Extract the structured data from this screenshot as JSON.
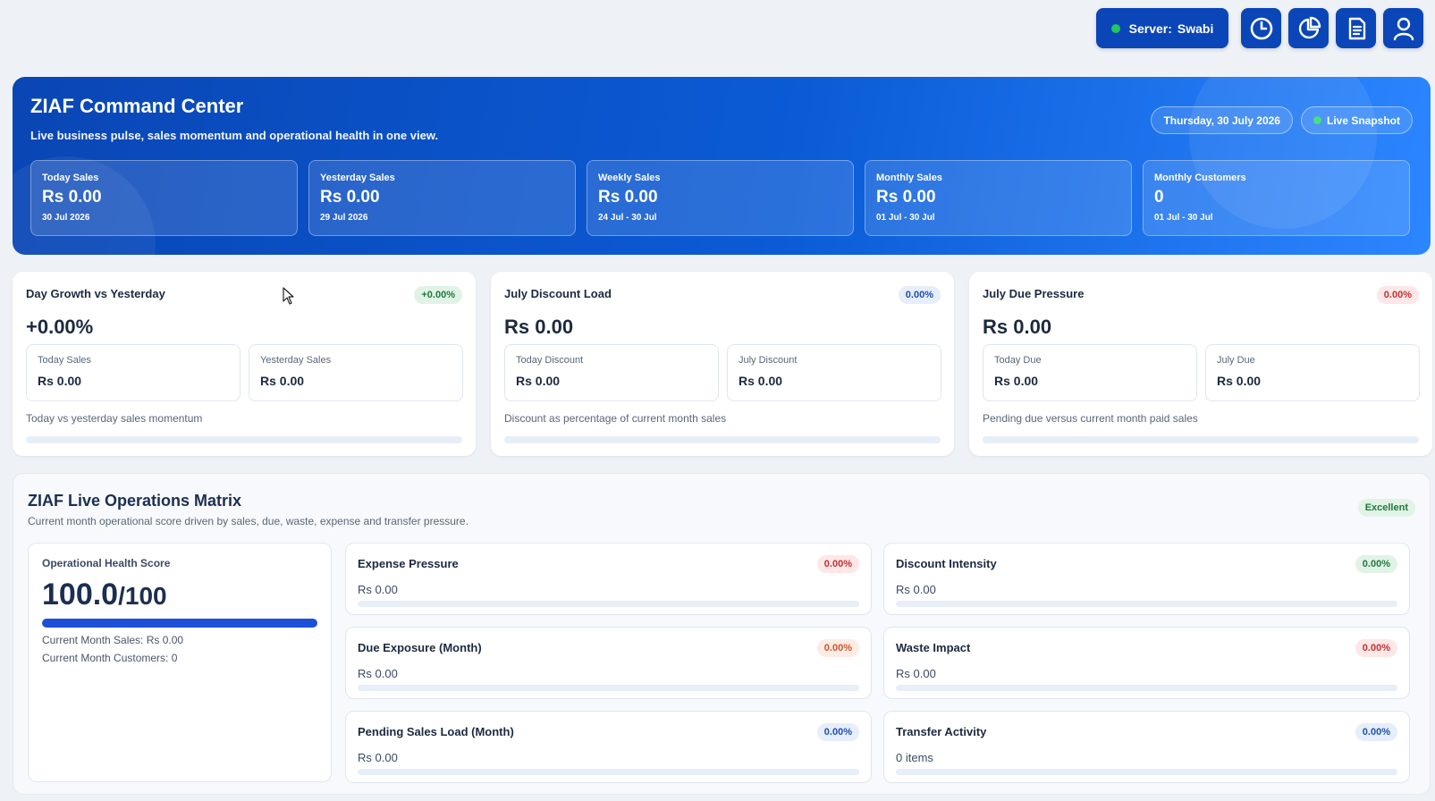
{
  "topbar": {
    "server_label": "Server:",
    "server_name": "Swabi",
    "icons": [
      "clock-icon",
      "pie-chart-icon",
      "document-icon",
      "user-icon"
    ]
  },
  "hero": {
    "title": "ZIAF Command Center",
    "subtitle": "Live business pulse, sales momentum and operational health in one view.",
    "date": "Thursday, 30 July 2026",
    "live_label": "Live Snapshot",
    "cards": [
      {
        "label": "Today Sales",
        "value": "Rs 0.00",
        "sub": "30 Jul 2026"
      },
      {
        "label": "Yesterday Sales",
        "value": "Rs 0.00",
        "sub": "29 Jul 2026"
      },
      {
        "label": "Weekly Sales",
        "value": "Rs 0.00",
        "sub": "24 Jul - 30 Jul"
      },
      {
        "label": "Monthly Sales",
        "value": "Rs 0.00",
        "sub": "01 Jul - 30 Jul"
      },
      {
        "label": "Monthly Customers",
        "value": "0",
        "sub": "01 Jul - 30 Jul"
      }
    ]
  },
  "metrics": [
    {
      "title": "Day Growth vs Yesterday",
      "badge": "+0.00%",
      "badge_color": "green",
      "big": "+0.00%",
      "left_label": "Today Sales",
      "left_value": "Rs 0.00",
      "right_label": "Yesterday Sales",
      "right_value": "Rs 0.00",
      "note": "Today vs yesterday sales momentum"
    },
    {
      "title": "July Discount Load",
      "badge": "0.00%",
      "badge_color": "blue",
      "big": "Rs 0.00",
      "left_label": "Today Discount",
      "left_value": "Rs 0.00",
      "right_label": "July Discount",
      "right_value": "Rs 0.00",
      "note": "Discount as percentage of current month sales"
    },
    {
      "title": "July Due Pressure",
      "badge": "0.00%",
      "badge_color": "red",
      "big": "Rs 0.00",
      "left_label": "Today Due",
      "left_value": "Rs 0.00",
      "right_label": "July Due",
      "right_value": "Rs 0.00",
      "note": "Pending due versus current month paid sales"
    }
  ],
  "ops": {
    "title": "ZIAF Live Operations Matrix",
    "subtitle": "Current month operational score driven by sales, due, waste, expense and transfer pressure.",
    "status": "Excellent",
    "health": {
      "label": "Operational Health Score",
      "score": "100.0",
      "out_of": "/100",
      "progress": 1.0,
      "sales_line": "Current Month Sales: Rs 0.00",
      "customers_line": "Current Month Customers: 0"
    },
    "cards": [
      {
        "title": "Expense Pressure",
        "badge": "0.00%",
        "value": "Rs 0.00",
        "color": "red"
      },
      {
        "title": "Discount Intensity",
        "badge": "0.00%",
        "value": "Rs 0.00",
        "color": "green"
      },
      {
        "title": "Due Exposure (Month)",
        "badge": "0.00%",
        "value": "Rs 0.00",
        "color": "orange"
      },
      {
        "title": "Waste Impact",
        "badge": "0.00%",
        "value": "Rs 0.00",
        "color": "red"
      },
      {
        "title": "Pending Sales Load (Month)",
        "badge": "0.00%",
        "value": "Rs 0.00",
        "color": "blue"
      },
      {
        "title": "Transfer Activity",
        "badge": "0.00%",
        "value": "0 items",
        "color": "blue"
      }
    ]
  }
}
